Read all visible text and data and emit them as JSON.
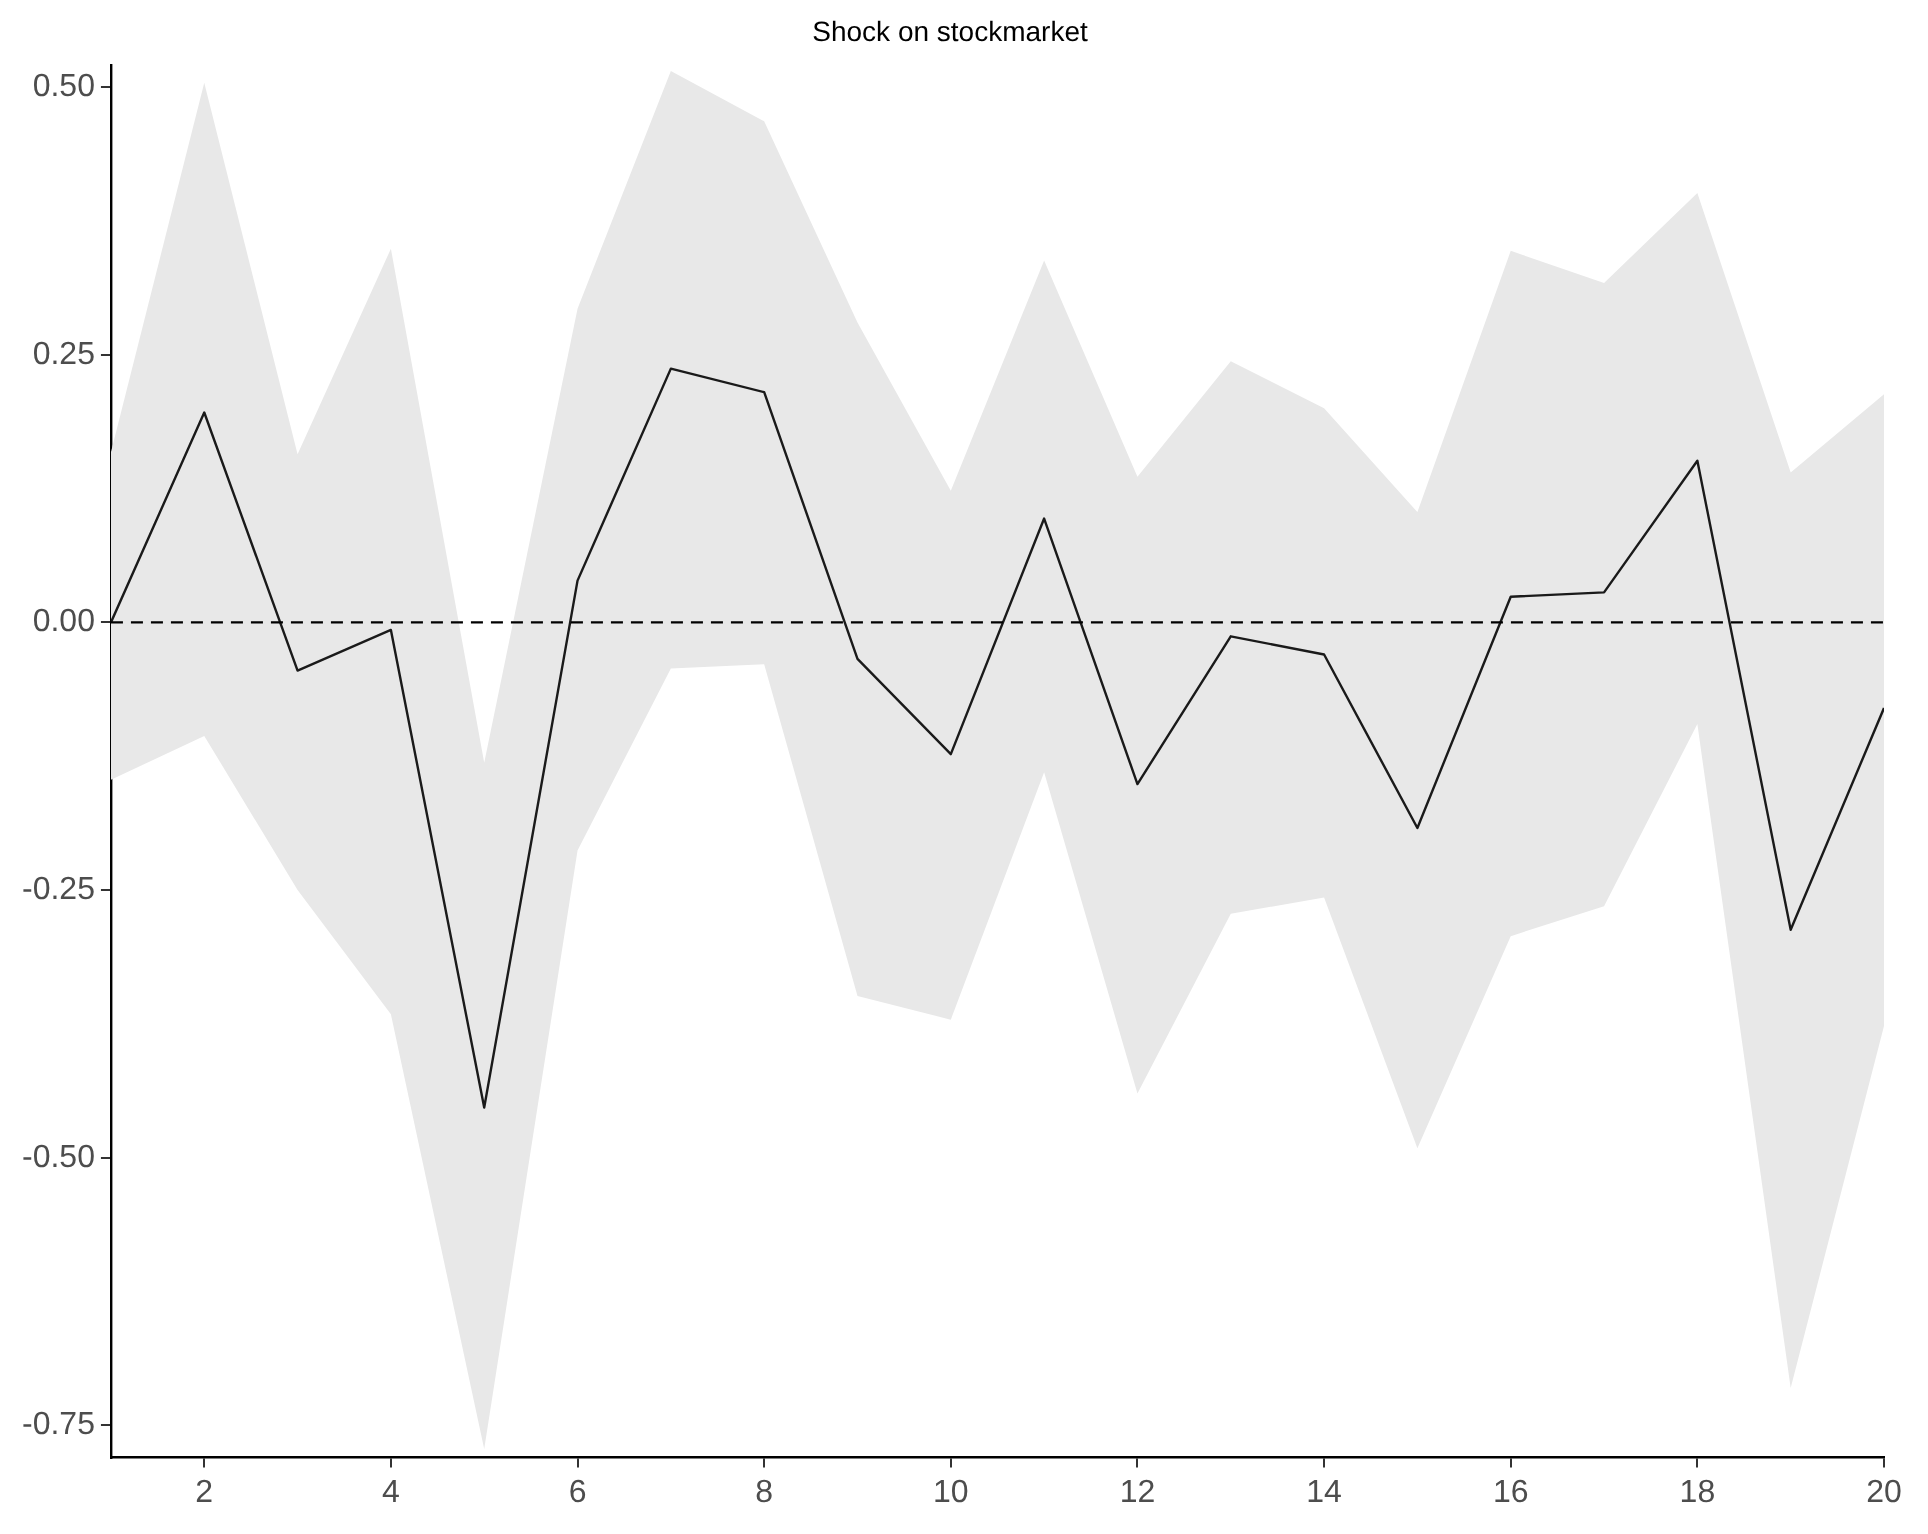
{
  "chart_data": {
    "type": "line",
    "title": "Shock on stockmarket",
    "x": [
      1,
      2,
      3,
      4,
      5,
      6,
      7,
      8,
      9,
      10,
      11,
      12,
      13,
      14,
      15,
      16,
      17,
      18,
      19,
      20
    ],
    "series": [
      {
        "color": "#1a1a1a",
        "values": [
          0,
          0.196,
          -0.045,
          -0.007,
          -0.453,
          0.039,
          0.237,
          0.215,
          -0.034,
          -0.123,
          0.097,
          -0.151,
          -0.013,
          -0.03,
          -0.192,
          0.024,
          0.028,
          0.151,
          -0.287,
          -0.08
        ],
        "upper": [
          0.159,
          0.504,
          0.157,
          0.349,
          -0.131,
          0.293,
          0.515,
          0.468,
          0.28,
          0.123,
          0.338,
          0.136,
          0.244,
          0.2,
          0.103,
          0.347,
          0.317,
          0.401,
          0.14,
          0.213
        ],
        "lower": [
          -0.147,
          -0.106,
          -0.25,
          -0.366,
          -0.772,
          -0.213,
          -0.043,
          -0.039,
          -0.349,
          -0.371,
          -0.14,
          -0.44,
          -0.272,
          -0.257,
          -0.491,
          -0.293,
          -0.265,
          -0.095,
          -0.715,
          -0.377
        ]
      }
    ],
    "xlim": [
      1,
      20
    ],
    "xticks": [
      2,
      4,
      6,
      8,
      10,
      12,
      14,
      16,
      18,
      20
    ],
    "ylim": [
      -0.78,
      0.52
    ],
    "yticks": [
      {
        "value": -0.75,
        "label": "-0.75"
      },
      {
        "value": -0.5,
        "label": "-0.50"
      },
      {
        "value": -0.25,
        "label": "-0.25"
      },
      {
        "value": 0,
        "label": "0.00"
      },
      {
        "value": 0.25,
        "label": "0.25"
      },
      {
        "value": 0.5,
        "label": "0.50"
      }
    ],
    "ref_lines": [
      {
        "axis": "y",
        "value": 0,
        "color": "#000000",
        "line_style": "dashed"
      }
    ],
    "grid": false,
    "legend": false,
    "marker": "none",
    "line_style": "solid"
  }
}
